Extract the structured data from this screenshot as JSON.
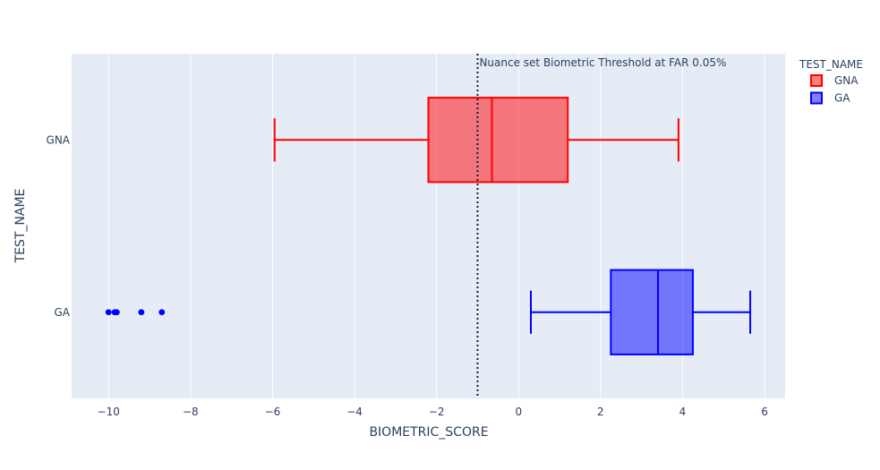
{
  "chart_data": {
    "type": "box",
    "orientation": "horizontal",
    "xlabel": "BIOMETRIC_SCORE",
    "ylabel": "TEST_NAME",
    "xlim": [
      -10.9,
      6.5
    ],
    "x_ticks": [
      -10,
      -8,
      -6,
      -4,
      -2,
      0,
      2,
      4,
      6
    ],
    "x_tick_labels": [
      "−10",
      "−8",
      "−6",
      "−4",
      "−2",
      "0",
      "2",
      "4",
      "6"
    ],
    "categories": [
      "GA",
      "GNA"
    ],
    "grid": true,
    "legend": {
      "title": "TEST_NAME",
      "placement": "top-right",
      "items": [
        {
          "name": "GNA",
          "color": "#ff0000"
        },
        {
          "name": "GA",
          "color": "#0000ff"
        }
      ]
    },
    "series": [
      {
        "name": "GNA",
        "category": "GNA",
        "color": "#ff0000",
        "fill": "rgba(255,0,0,0.5)",
        "whisker_low": -5.95,
        "q1": -2.2,
        "median": -0.65,
        "q3": 1.2,
        "whisker_high": 3.9,
        "outliers": []
      },
      {
        "name": "GA",
        "category": "GA",
        "color": "#0000ff",
        "fill": "rgba(0,0,255,0.5)",
        "whisker_low": 0.3,
        "q1": 2.25,
        "median": 3.4,
        "q3": 4.25,
        "whisker_high": 5.65,
        "outliers": [
          -10.0,
          -9.85,
          -9.8,
          -9.2,
          -8.7
        ]
      }
    ],
    "threshold": {
      "x": -1.0,
      "style": "dotted",
      "color": "#1a1a3a",
      "label": "Nuance set Biometric Threshold at FAR 0.05%"
    }
  }
}
